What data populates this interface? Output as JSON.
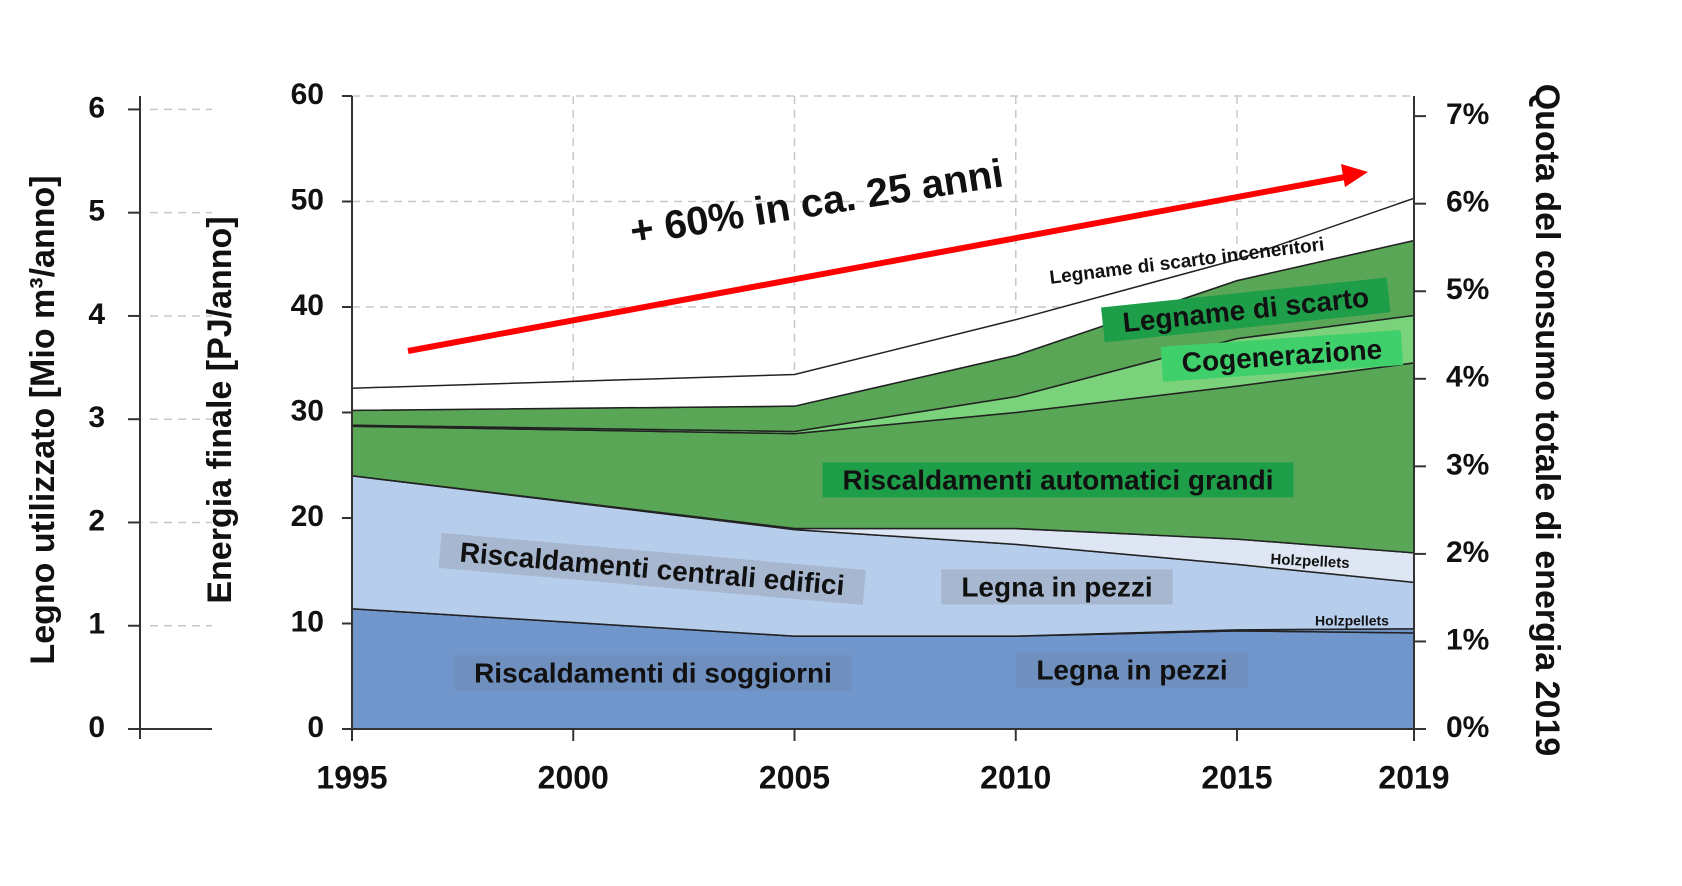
{
  "chart_data": {
    "type": "stacked_area",
    "y_label": "Energia finale [PJ/anno]",
    "y3_label": "Legno utilizzato [Mio m³/anno]",
    "y2_label": "Quota del consumo totale di energia 2019",
    "x": [
      1995,
      2005,
      2010,
      2015,
      2019
    ],
    "xlim": [
      1995,
      2019
    ],
    "xticks": [
      1995,
      2000,
      2005,
      2010,
      2015,
      2019
    ],
    "ylim": [
      0,
      60
    ],
    "yticks": [
      0,
      10,
      20,
      30,
      40,
      50,
      60
    ],
    "y3lim": [
      0,
      6.13
    ],
    "y3ticks": [
      0,
      1,
      2,
      3,
      4,
      5,
      6
    ],
    "y2lim": [
      0,
      7.23
    ],
    "y2ticks": [
      {
        "value": 0,
        "label": "0%"
      },
      {
        "value": 1,
        "label": "1%"
      },
      {
        "value": 2,
        "label": "2%"
      },
      {
        "value": 3,
        "label": "3%"
      },
      {
        "value": 4,
        "label": "4%"
      },
      {
        "value": 5,
        "label": "5%"
      },
      {
        "value": 6,
        "label": "6%"
      },
      {
        "value": 7,
        "label": "7%"
      }
    ],
    "grid": true,
    "series": [
      {
        "name": "Legna in pezzi",
        "color": "#7096cb",
        "values": [
          11.4,
          8.8,
          8.8,
          9.3,
          9.1
        ]
      },
      {
        "name": "Holzpellets",
        "color": "#7096cb",
        "values": [
          0,
          0,
          0,
          0.1,
          0.4
        ]
      },
      {
        "name": "Legna in pezzi",
        "color": "#b6cdec",
        "values": [
          12.6,
          10.1,
          8.7,
          6.2,
          4.4
        ]
      },
      {
        "name": "Holzpellets",
        "color": "#dde6f2",
        "values": [
          0,
          0.1,
          1.5,
          2.4,
          2.8
        ]
      },
      {
        "name": "Riscaldamenti automatici grandi",
        "color": "#5aa657",
        "values": [
          4.7,
          9.0,
          11.0,
          14.5,
          18.0
        ]
      },
      {
        "name": "Cogenerazione",
        "color": "#7ad27a",
        "values": [
          0.1,
          0.2,
          1.5,
          4.5,
          4.5
        ]
      },
      {
        "name": "Legname di scarto",
        "color": "#5aa657",
        "values": [
          1.4,
          2.4,
          3.9,
          5.5,
          7.1
        ]
      },
      {
        "name": "Legname di scarto inceneritori",
        "color": "#ffffff",
        "values": [
          2.1,
          3.0,
          3.4,
          2.0,
          4.0
        ]
      }
    ],
    "annotations": [
      "Riscaldamenti di soggiorni",
      "Riscaldamenti centrali edifici",
      "+ 60% in ca. 25 anni"
    ]
  }
}
